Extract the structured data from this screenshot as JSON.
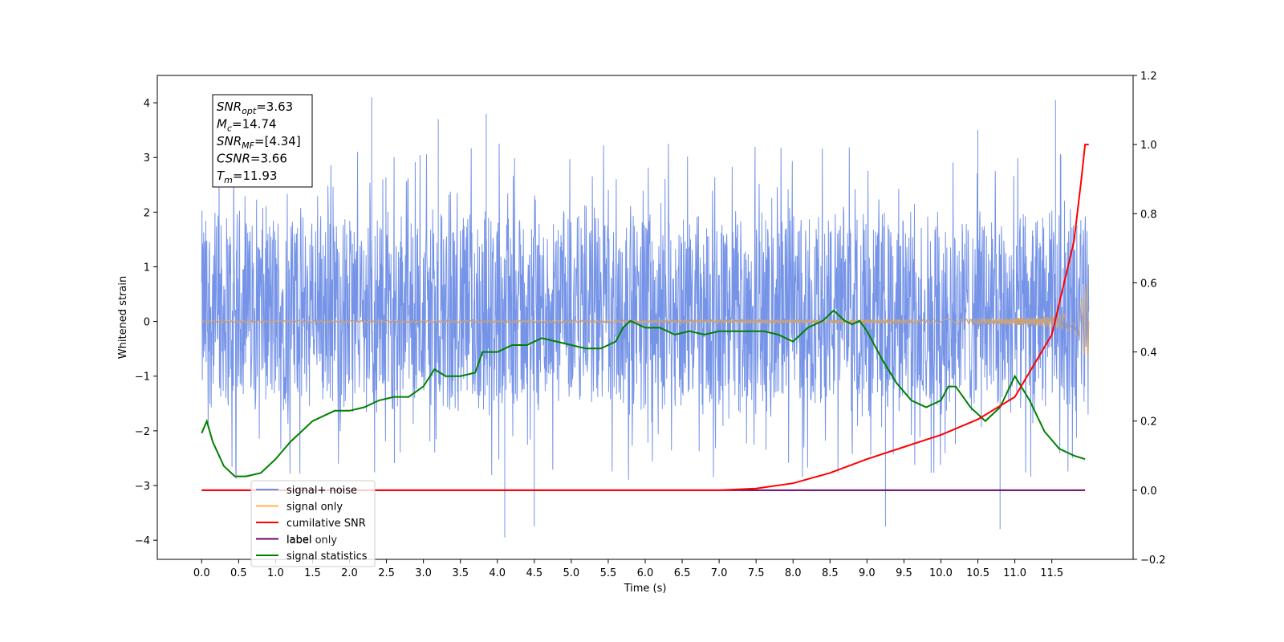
{
  "chart_data": {
    "type": "line",
    "xlabel": "Time (s)",
    "ylabel": "Whitened strain",
    "xlim": [
      -0.6,
      12.6
    ],
    "ylim": [
      -4.35,
      4.5
    ],
    "y2lim": [
      -0.2,
      1.2
    ],
    "x_ticks": [
      "0.0",
      "0.5",
      "1.0",
      "1.5",
      "2.0",
      "2.5",
      "3.0",
      "3.5",
      "4.0",
      "4.5",
      "5.0",
      "5.5",
      "6.0",
      "6.5",
      "7.0",
      "7.5",
      "8.0",
      "8.5",
      "9.0",
      "9.5",
      "10.0",
      "10.5",
      "11.0",
      "11.5"
    ],
    "y_ticks": [
      "4",
      "3",
      "2",
      "1",
      "0",
      "−1",
      "−2",
      "−3",
      "−4"
    ],
    "y2_ticks": [
      "1.2",
      "1.0",
      "0.8",
      "0.6",
      "0.4",
      "0.2",
      "0.0",
      "−0.2"
    ],
    "annotation": [
      {
        "main": "SNR",
        "sub": "opt",
        "rest": "=3.63"
      },
      {
        "main": "M",
        "sub": "c",
        "rest": "=14.74"
      },
      {
        "main": "SNR",
        "sub": "MF",
        "rest": "=[4.34]"
      },
      {
        "main": "CSNR",
        "sub": "",
        "rest": "=3.66"
      },
      {
        "main": "T",
        "sub": "m",
        "rest": "=11.93"
      }
    ],
    "legend": {
      "placement": "lower-left",
      "entries": [
        {
          "label": "signal+ noise",
          "color": "#6f8ee6"
        },
        {
          "label": "signal only",
          "color": "#ffb74d"
        },
        {
          "label": "cumilative SNR",
          "color": "#ff0000"
        },
        {
          "label": "label",
          "color": "#6a0a6a"
        },
        {
          "label": "signal statistics",
          "color": "#008000"
        }
      ],
      "hidden_label": "label only"
    },
    "noise": {
      "name": "signal+ noise",
      "color": "#6f8ee6",
      "x_range": [
        0.0,
        12.0
      ],
      "typical_range": [
        -1.8,
        2.2
      ],
      "peaks": [
        [
          2.3,
          4.1
        ],
        [
          3.2,
          3.7
        ],
        [
          3.85,
          3.8
        ],
        [
          11.55,
          4.05
        ],
        [
          10.5,
          3.5
        ],
        [
          4.1,
          -3.95
        ],
        [
          4.5,
          -3.75
        ],
        [
          10.8,
          -3.8
        ],
        [
          9.25,
          -3.75
        ]
      ]
    },
    "signal_only": {
      "name": "signal only",
      "color": "#c9a27c",
      "x_range": [
        0.0,
        12.0
      ],
      "final_amplitude": 0.7
    },
    "cumulative_snr": {
      "name": "cumilative SNR",
      "color": "#ff0000",
      "axis": "right",
      "x": [
        0.0,
        7.0,
        7.5,
        8.0,
        8.5,
        9.0,
        9.5,
        10.0,
        10.5,
        11.0,
        11.5,
        11.8,
        11.9,
        11.95,
        12.0
      ],
      "y": [
        0.0,
        0.0,
        0.005,
        0.02,
        0.05,
        0.09,
        0.125,
        0.16,
        0.205,
        0.27,
        0.45,
        0.72,
        0.9,
        1.0,
        1.0
      ]
    },
    "label_series": {
      "name": "label",
      "color": "#6a0a6a",
      "axis": "right",
      "x": [
        0.0,
        11.95
      ],
      "y": [
        0.0,
        0.0
      ]
    },
    "signal_statistics": {
      "name": "signal statistics",
      "color": "#008000",
      "axis": "right",
      "x": [
        0.0,
        0.07,
        0.15,
        0.3,
        0.45,
        0.6,
        0.8,
        1.0,
        1.2,
        1.5,
        1.8,
        2.0,
        2.2,
        2.4,
        2.6,
        2.8,
        3.0,
        3.15,
        3.3,
        3.5,
        3.7,
        3.8,
        4.0,
        4.2,
        4.4,
        4.6,
        4.8,
        5.0,
        5.2,
        5.4,
        5.6,
        5.7,
        5.8,
        6.0,
        6.2,
        6.4,
        6.6,
        6.8,
        7.0,
        7.2,
        7.4,
        7.6,
        7.8,
        8.0,
        8.2,
        8.4,
        8.55,
        8.7,
        8.8,
        8.9,
        9.0,
        9.2,
        9.4,
        9.6,
        9.8,
        10.0,
        10.1,
        10.2,
        10.4,
        10.6,
        10.8,
        11.0,
        11.2,
        11.4,
        11.6,
        11.8,
        11.95
      ],
      "y": [
        0.165,
        0.2,
        0.14,
        0.07,
        0.04,
        0.04,
        0.05,
        0.09,
        0.14,
        0.2,
        0.23,
        0.23,
        0.24,
        0.26,
        0.27,
        0.27,
        0.3,
        0.35,
        0.33,
        0.33,
        0.34,
        0.4,
        0.4,
        0.42,
        0.42,
        0.44,
        0.43,
        0.42,
        0.41,
        0.41,
        0.43,
        0.47,
        0.49,
        0.47,
        0.47,
        0.45,
        0.46,
        0.45,
        0.46,
        0.46,
        0.46,
        0.46,
        0.45,
        0.43,
        0.47,
        0.49,
        0.52,
        0.49,
        0.48,
        0.49,
        0.46,
        0.38,
        0.31,
        0.26,
        0.24,
        0.26,
        0.3,
        0.3,
        0.24,
        0.2,
        0.24,
        0.33,
        0.26,
        0.17,
        0.12,
        0.1,
        0.09
      ]
    }
  }
}
